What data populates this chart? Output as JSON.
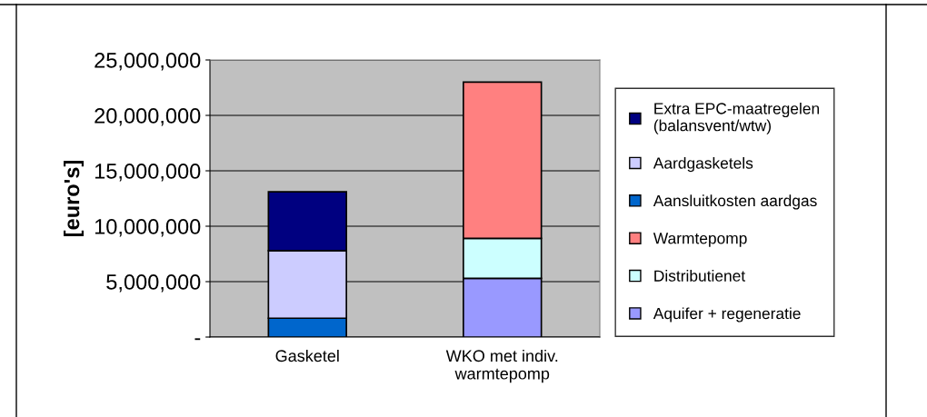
{
  "chart_data": {
    "type": "bar",
    "stacked": true,
    "ylabel": "[euro's]",
    "categories": [
      "Gasketel",
      "WKO met indiv.\nwarmtepomp"
    ],
    "series": [
      {
        "name": "Aquifer + regeneratie",
        "color": "#9999ff",
        "values": [
          null,
          5300000
        ]
      },
      {
        "name": "Distributienet",
        "color": "#ccffff",
        "values": [
          null,
          3600000
        ]
      },
      {
        "name": "Warmtepomp",
        "color": "#ff8080",
        "values": [
          null,
          14100000
        ]
      },
      {
        "name": "Aansluitkosten aardgas",
        "color": "#0066cc",
        "values": [
          1700000,
          null
        ]
      },
      {
        "name": "Aardgasketels",
        "color": "#ccccff",
        "values": [
          6100000,
          null
        ]
      },
      {
        "name": "Extra EPC-maatregelen\n(balansvent/wtw)",
        "color": "#000080",
        "values": [
          5300000,
          null
        ]
      }
    ],
    "ylim": [
      0,
      25000000
    ],
    "yticks": [
      {
        "value": 0,
        "label": "-"
      },
      {
        "value": 5000000,
        "label": "5,000,000"
      },
      {
        "value": 10000000,
        "label": "10,000,000"
      },
      {
        "value": 15000000,
        "label": "15,000,000"
      },
      {
        "value": 20000000,
        "label": "20,000,000"
      },
      {
        "value": 25000000,
        "label": "25,000,000"
      }
    ],
    "grid": "y",
    "legend": "right"
  }
}
